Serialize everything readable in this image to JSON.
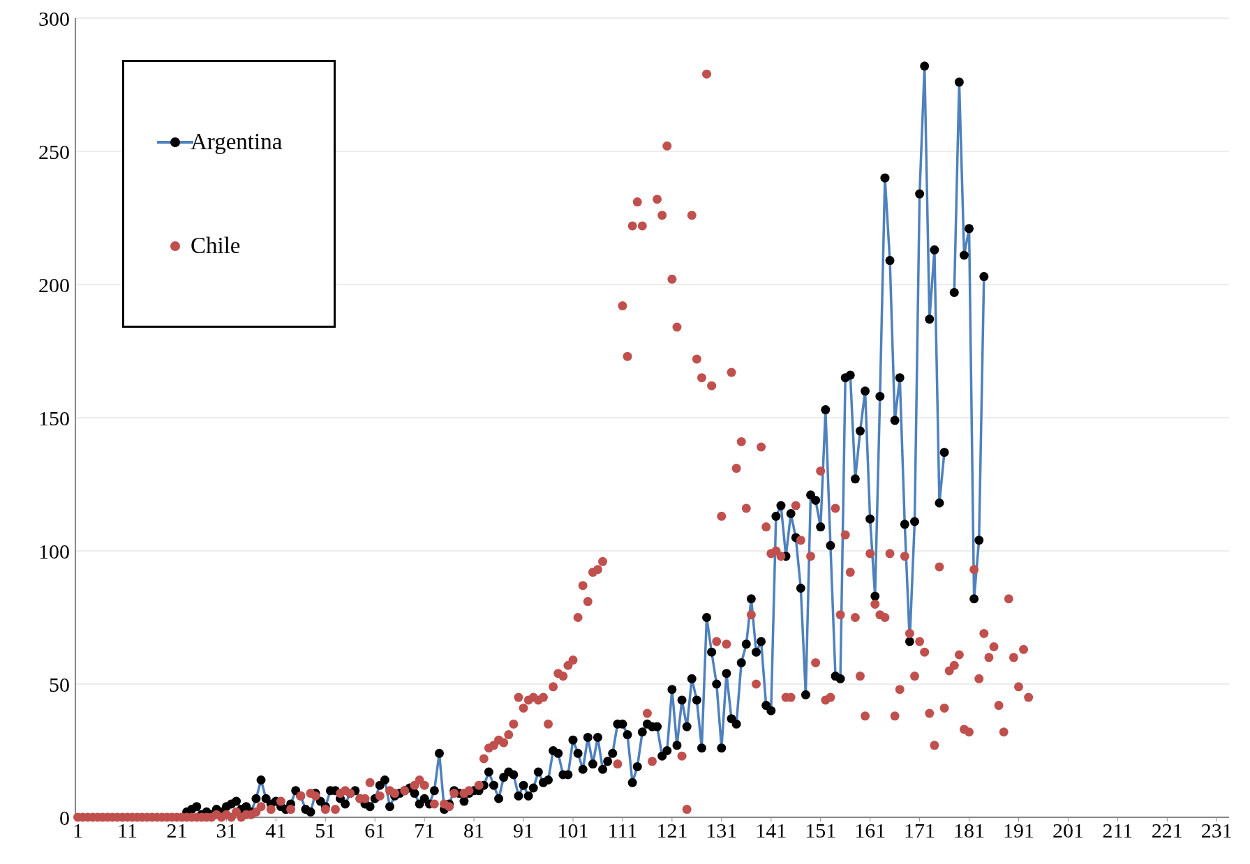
{
  "chart_data": {
    "type": "line",
    "xlim": [
      0.5,
      233.5
    ],
    "xticks": [
      1,
      11,
      21,
      31,
      41,
      51,
      61,
      71,
      81,
      91,
      101,
      111,
      121,
      131,
      141,
      151,
      161,
      171,
      181,
      191,
      201,
      211,
      221,
      231
    ],
    "ylim": [
      0,
      300
    ],
    "yticks": [
      0,
      50,
      100,
      150,
      200,
      250,
      300
    ],
    "grid": "y",
    "legend": "top left",
    "marker": "circle",
    "line_style": "solid",
    "series": [
      {
        "name": "Argentina",
        "color": "#4f81bd",
        "x": [
          23,
          24,
          25,
          26,
          27,
          28,
          29,
          30,
          31,
          32,
          33,
          34,
          35,
          36,
          37,
          38,
          39,
          40,
          41,
          42,
          43,
          44,
          45,
          46,
          47,
          48,
          49,
          50,
          51,
          52,
          53,
          54,
          55,
          56,
          57,
          58,
          59,
          60,
          61,
          62,
          63,
          64,
          65,
          66,
          67,
          68,
          69,
          70,
          71,
          72,
          73,
          74,
          75,
          76,
          77,
          78,
          79,
          80,
          81,
          82,
          83,
          84,
          85,
          86,
          87,
          88,
          89,
          90,
          91,
          92,
          93,
          94,
          95,
          96,
          97,
          98,
          99,
          100,
          101,
          102,
          103,
          104,
          105,
          106,
          107,
          108,
          109,
          110,
          111,
          112,
          113,
          114,
          115,
          116,
          117,
          118,
          119,
          120,
          121,
          122,
          123,
          124,
          125,
          126,
          127,
          128,
          129,
          130,
          131,
          132,
          133,
          134,
          135,
          136,
          137,
          138,
          139,
          140,
          141,
          142,
          143,
          144,
          145,
          146,
          147,
          148,
          149,
          150,
          151,
          152,
          153,
          154,
          155,
          156,
          157,
          158,
          159,
          160,
          161,
          162,
          163,
          164,
          165,
          166,
          167,
          168,
          169,
          170,
          171,
          172,
          173,
          174,
          175,
          176,
          177,
          178,
          179,
          180,
          181,
          182,
          183,
          184
        ],
        "values": [
          2,
          3,
          4,
          1,
          2,
          1,
          3,
          2,
          4,
          5,
          6,
          3,
          4,
          2,
          7,
          14,
          7,
          5,
          6,
          4,
          3,
          5,
          10,
          8,
          3,
          2,
          9,
          6,
          4,
          10,
          10,
          7,
          5,
          9,
          10,
          7,
          5,
          4,
          7,
          12,
          14,
          4,
          8,
          9,
          10,
          11,
          9,
          5,
          7,
          5,
          10,
          24,
          3,
          5,
          10,
          9,
          6,
          9,
          10,
          10,
          12,
          17,
          12,
          7,
          15,
          17,
          16,
          8,
          12,
          8,
          11,
          17,
          13,
          14,
          25,
          24,
          16,
          16,
          29,
          24,
          18,
          30,
          20,
          30,
          18,
          21,
          24,
          35,
          35,
          31,
          13,
          19,
          32,
          35,
          34,
          34,
          23,
          25,
          48,
          27,
          44,
          34,
          52,
          44,
          26,
          75,
          62,
          50,
          26,
          54,
          37,
          35,
          58,
          65,
          82,
          62,
          66,
          42,
          40,
          113,
          117,
          98,
          114,
          105,
          86,
          46,
          121,
          119,
          109,
          153,
          102,
          53,
          52,
          165,
          166,
          127,
          145,
          160,
          112,
          83,
          158,
          240,
          209,
          149,
          165,
          110,
          66,
          111,
          234,
          282,
          187,
          213,
          118,
          137,
          null,
          197,
          276,
          211,
          221,
          82,
          104,
          203
        ]
      },
      {
        "name": "Chile",
        "type": "scatter",
        "color": "#c0504d",
        "x": [
          1,
          2,
          3,
          4,
          5,
          6,
          7,
          8,
          9,
          10,
          11,
          12,
          13,
          14,
          15,
          16,
          17,
          18,
          19,
          20,
          21,
          22,
          23,
          24,
          25,
          26,
          27,
          28,
          29,
          30,
          31,
          32,
          33,
          34,
          35,
          36,
          37,
          38,
          40,
          42,
          44,
          46,
          48,
          49,
          51,
          53,
          54,
          55,
          56,
          58,
          59,
          60,
          62,
          64,
          65,
          67,
          69,
          70,
          71,
          73,
          75,
          76,
          77,
          79,
          80,
          82,
          83,
          84,
          85,
          86,
          87,
          88,
          89,
          90,
          91,
          92,
          93,
          94,
          95,
          96,
          97,
          98,
          99,
          100,
          101,
          102,
          103,
          104,
          105,
          106,
          107,
          110,
          111,
          112,
          113,
          114,
          115,
          116,
          117,
          118,
          119,
          120,
          121,
          122,
          123,
          124,
          125,
          126,
          127,
          128,
          129,
          130,
          131,
          132,
          133,
          134,
          135,
          136,
          137,
          138,
          139,
          140,
          141,
          142,
          143,
          144,
          145,
          146,
          147,
          149,
          150,
          151,
          152,
          153,
          154,
          155,
          156,
          157,
          158,
          159,
          160,
          161,
          162,
          163,
          164,
          165,
          166,
          167,
          168,
          169,
          170,
          171,
          172,
          173,
          174,
          175,
          176,
          177,
          178,
          179,
          180,
          181,
          182,
          183,
          184,
          185,
          186,
          187,
          188,
          189,
          190,
          191,
          192,
          193
        ],
        "values": [
          0,
          0,
          0,
          0,
          0,
          0,
          0,
          0,
          0,
          0,
          0,
          0,
          0,
          0,
          0,
          0,
          0,
          0,
          0,
          0,
          0,
          0,
          0,
          0,
          0,
          0,
          0,
          0,
          1,
          0,
          1,
          0,
          2,
          0,
          1,
          1,
          2,
          4,
          3,
          6,
          3,
          8,
          9,
          8,
          3,
          3,
          9,
          10,
          9,
          7,
          7,
          13,
          8,
          10,
          9,
          10,
          12,
          14,
          12,
          5,
          5,
          4,
          9,
          9,
          10,
          12,
          22,
          26,
          27,
          29,
          28,
          31,
          35,
          45,
          41,
          44,
          45,
          44,
          45,
          35,
          49,
          54,
          53,
          57,
          59,
          75,
          87,
          81,
          92,
          93,
          96,
          20,
          192,
          173,
          222,
          231,
          222,
          39,
          21,
          232,
          226,
          252,
          202,
          184,
          23,
          3,
          226,
          172,
          165,
          279,
          162,
          66,
          113,
          65,
          167,
          131,
          141,
          116,
          76,
          50,
          139,
          109,
          99,
          100,
          98,
          45,
          45,
          117,
          104,
          98,
          58,
          130,
          44,
          45,
          116,
          76,
          106,
          92,
          75,
          53,
          38,
          99,
          80,
          76,
          75,
          99,
          38,
          48,
          98,
          69,
          53,
          66,
          62,
          39,
          27,
          94,
          41,
          55,
          57,
          61,
          33,
          32,
          93,
          52,
          69,
          60,
          64,
          42,
          32,
          82,
          60,
          49,
          63,
          45
        ]
      }
    ]
  }
}
